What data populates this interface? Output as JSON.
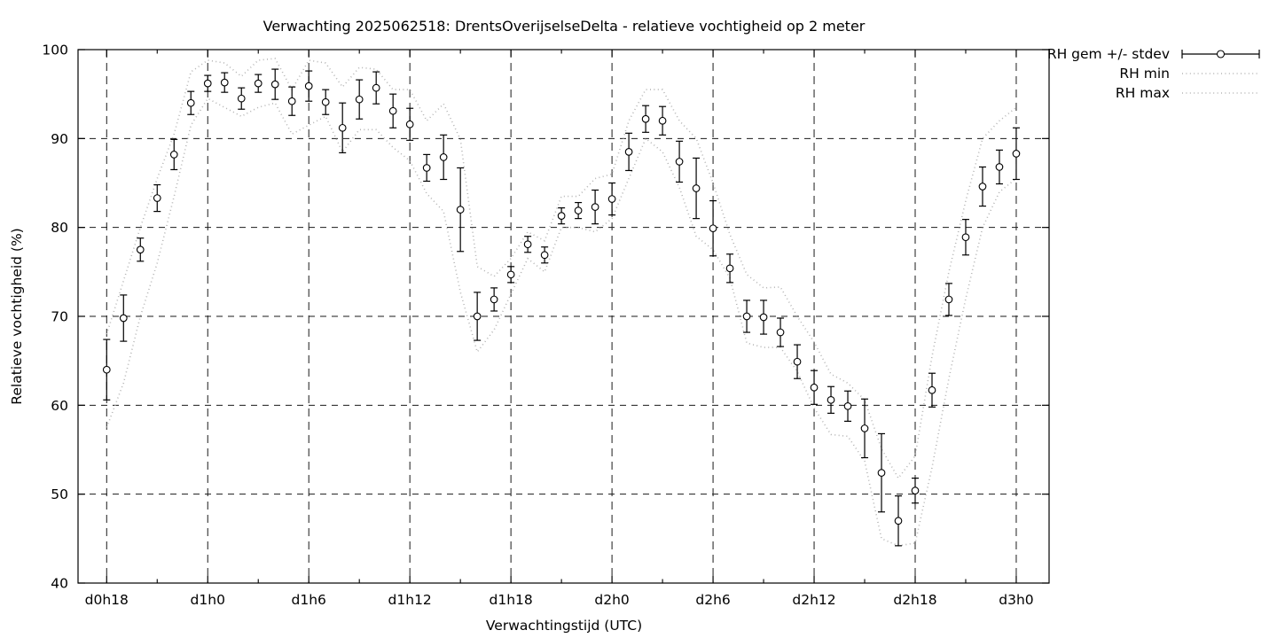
{
  "chart_data": {
    "type": "line",
    "subtype": "errorbars-with-min-max-band",
    "title": "Verwachting 2025062518: DrentsOverijselseDelta - relatieve vochtigheid op 2 meter",
    "xlabel": "Verwachtingstijd (UTC)",
    "ylabel": "Relatieve vochtigheid (%)",
    "ylim": [
      40,
      100
    ],
    "xlim_hours": [
      -1.7,
      55.95
    ],
    "grid": true,
    "legend_position": "outside-top-right",
    "y_ticks": [
      40,
      50,
      60,
      70,
      80,
      90,
      100
    ],
    "x_major_ticks": [
      {
        "hour": 0,
        "label": "d0h18"
      },
      {
        "hour": 6,
        "label": "d1h0"
      },
      {
        "hour": 12,
        "label": "d1h6"
      },
      {
        "hour": 18,
        "label": "d1h12"
      },
      {
        "hour": 24,
        "label": "d1h18"
      },
      {
        "hour": 30,
        "label": "d2h0"
      },
      {
        "hour": 36,
        "label": "d2h6"
      },
      {
        "hour": 42,
        "label": "d2h12"
      },
      {
        "hour": 48,
        "label": "d2h18"
      },
      {
        "hour": 54,
        "label": "d3h0"
      }
    ],
    "x_minor_tick_hours": [
      3,
      9,
      15,
      21,
      27,
      33,
      39,
      45,
      51
    ],
    "legend": [
      {
        "label": "RH gem +/- stdev",
        "style": "errorbar",
        "color": "#000000"
      },
      {
        "label": "RH min",
        "style": "dotted",
        "color": "#b4b4b4"
      },
      {
        "label": "RH max",
        "style": "dotted",
        "color": "#b4b4b4"
      }
    ],
    "series": {
      "hours_from_d0h18": [
        0,
        1,
        2,
        3,
        4,
        5,
        6,
        7,
        8,
        9,
        10,
        11,
        12,
        13,
        14,
        15,
        16,
        17,
        18,
        19,
        20,
        21,
        22,
        23,
        24,
        25,
        26,
        27,
        28,
        29,
        30,
        31,
        32,
        33,
        34,
        35,
        36,
        37,
        38,
        39,
        40,
        41,
        42,
        43,
        44,
        45,
        46,
        47,
        48,
        49,
        50,
        51,
        52,
        53,
        54
      ],
      "rh_mean": [
        64.0,
        69.8,
        77.5,
        83.3,
        88.2,
        94.0,
        96.2,
        96.3,
        94.5,
        96.2,
        96.1,
        94.2,
        95.9,
        94.1,
        91.2,
        94.4,
        95.7,
        93.1,
        91.6,
        86.7,
        87.9,
        82.0,
        70.0,
        71.9,
        74.7,
        78.1,
        76.9,
        81.3,
        81.9,
        82.3,
        83.2,
        88.5,
        92.2,
        92.0,
        87.4,
        84.4,
        79.9,
        75.4,
        70.0,
        69.9,
        68.2,
        64.9,
        62.0,
        60.6,
        59.9,
        57.4,
        52.4,
        47.0,
        50.4,
        61.7,
        71.9,
        78.9,
        84.6,
        86.8,
        88.3
      ],
      "rh_stdev": [
        3.4,
        2.6,
        1.3,
        1.5,
        1.7,
        1.3,
        0.9,
        1.1,
        1.2,
        1.0,
        1.7,
        1.6,
        1.7,
        1.4,
        2.8,
        2.2,
        1.8,
        1.9,
        1.8,
        1.5,
        2.5,
        4.7,
        2.7,
        1.3,
        0.9,
        0.9,
        0.9,
        0.9,
        0.9,
        1.9,
        1.8,
        2.1,
        1.5,
        1.6,
        2.3,
        3.4,
        3.1,
        1.6,
        1.8,
        1.9,
        1.6,
        1.9,
        1.9,
        1.5,
        1.7,
        3.3,
        4.4,
        2.8,
        1.4,
        1.9,
        1.8,
        2.0,
        2.2,
        1.9,
        2.9
      ],
      "rh_min": [
        57.5,
        62.5,
        70.0,
        76.0,
        83.5,
        91.5,
        94.5,
        93.5,
        92.5,
        93.5,
        94.0,
        90.5,
        91.5,
        92.5,
        88.5,
        91.0,
        91.0,
        89.0,
        87.5,
        83.8,
        81.8,
        72.7,
        66.0,
        68.5,
        72.5,
        76.5,
        75.0,
        80.0,
        80.0,
        79.5,
        81.0,
        85.5,
        90.0,
        88.5,
        84.5,
        79.0,
        77.5,
        74.3,
        67.0,
        66.5,
        66.5,
        63.8,
        59.7,
        56.7,
        56.5,
        53.7,
        45.0,
        44.2,
        44.5,
        53.0,
        63.0,
        72.0,
        80.0,
        84.0,
        85.5
      ],
      "rh_max": [
        68.0,
        74.0,
        80.0,
        85.5,
        90.5,
        97.5,
        98.8,
        98.5,
        97.0,
        98.8,
        99.0,
        95.5,
        98.8,
        98.5,
        95.8,
        98.0,
        97.8,
        95.5,
        95.5,
        92.0,
        93.9,
        89.9,
        75.6,
        74.5,
        76.5,
        79.5,
        78.5,
        83.5,
        83.5,
        85.5,
        86.0,
        92.0,
        95.5,
        95.5,
        92.0,
        90.0,
        85.0,
        79.2,
        74.7,
        73.2,
        73.3,
        70.0,
        67.1,
        63.5,
        62.5,
        60.6,
        55.1,
        51.8,
        54.3,
        65.5,
        75.0,
        83.0,
        90.0,
        92.0,
        93.5
      ]
    },
    "colors": {
      "foreground": "#000000",
      "grid": "#1a1a1a",
      "min_max_dotted": "#b4b4b4",
      "background": "#ffffff",
      "marker_fill": "#ffffff"
    }
  }
}
